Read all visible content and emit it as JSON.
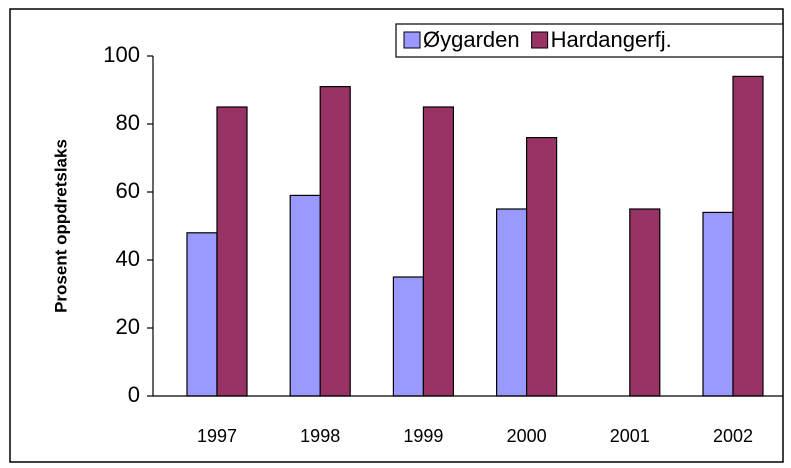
{
  "chart_data": {
    "type": "bar",
    "y_label": "Prosent oppdretslaks",
    "categories": [
      "1997",
      "1998",
      "1999",
      "2000",
      "2001",
      "2002"
    ],
    "series": [
      {
        "name": "Øygarden",
        "color": "#9999ff",
        "values": [
          48,
          59,
          35,
          55,
          null,
          54
        ]
      },
      {
        "name": "Hardangerfj.",
        "color": "#993366",
        "values": [
          85,
          91,
          85,
          76,
          55,
          94
        ]
      }
    ],
    "ylim": [
      0,
      100
    ],
    "yticks": [
      0,
      20,
      40,
      60,
      80,
      100
    ],
    "grid": false,
    "legend": "top-right"
  }
}
